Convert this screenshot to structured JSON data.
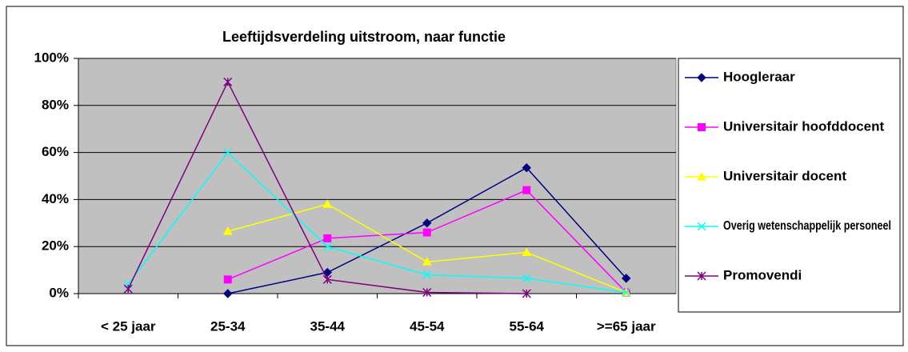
{
  "chart_data": {
    "type": "line",
    "title": "Leeftijdsverdeling uitstroom, naar functie",
    "categories": [
      "< 25 jaar",
      "25-34",
      "35-44",
      "45-54",
      "55-64",
      ">=65 jaar"
    ],
    "series": [
      {
        "name": "Hoogleraar",
        "color": "#000080",
        "marker": "diamond",
        "values": [
          null,
          0,
          9,
          30,
          53.5,
          6.5
        ]
      },
      {
        "name": "Universitair hoofddocent",
        "color": "#ff00ff",
        "marker": "square",
        "values": [
          null,
          6,
          23.5,
          26,
          44,
          0.5
        ]
      },
      {
        "name": "Universitair docent",
        "color": "#ffff00",
        "marker": "triangle",
        "values": [
          null,
          26.5,
          38,
          13.5,
          17.5,
          0.5
        ]
      },
      {
        "name": "Overig wetenschappelijk personeel",
        "color": "#00ffff",
        "marker": "x",
        "values": [
          4,
          60,
          20,
          8,
          6.5,
          0.5
        ]
      },
      {
        "name": "Promovendi",
        "color": "#800080",
        "marker": "star",
        "values": [
          2,
          90,
          6,
          0.5,
          0,
          null
        ]
      }
    ],
    "ylim": [
      0,
      100
    ],
    "yticks": [
      {
        "value": 0,
        "label": "0%"
      },
      {
        "value": 20,
        "label": "20%"
      },
      {
        "value": 40,
        "label": "40%"
      },
      {
        "value": 60,
        "label": "60%"
      },
      {
        "value": 80,
        "label": "80%"
      },
      {
        "value": 100,
        "label": "100%"
      }
    ],
    "grid": true,
    "legend": "right"
  }
}
